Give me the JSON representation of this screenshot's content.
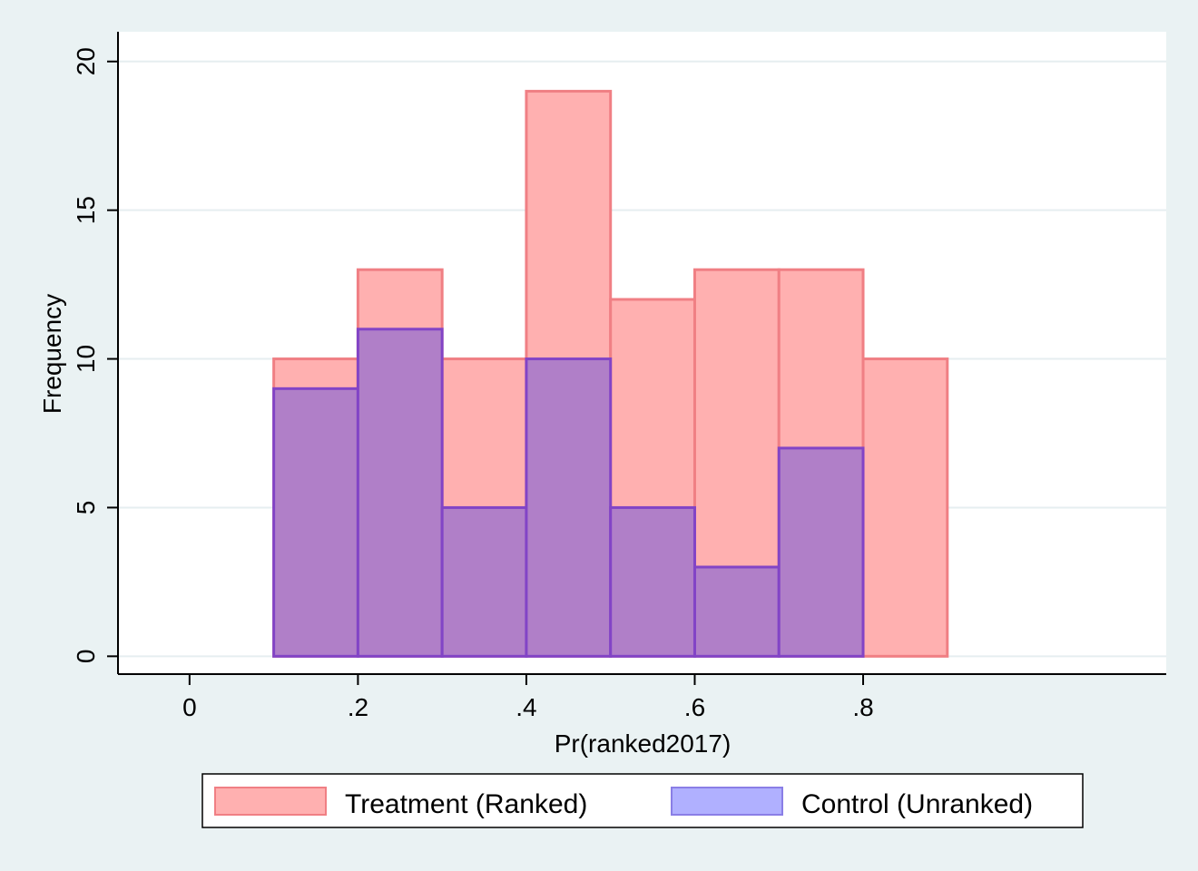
{
  "chart_data": {
    "type": "bar",
    "title": "",
    "xlabel": "Pr(ranked2017)",
    "ylabel": "Frequency",
    "xlim": [
      -0.085,
      1.16
    ],
    "ylim": [
      -0.6,
      21
    ],
    "x_ticks": [
      0,
      0.2,
      0.4,
      0.6,
      0.8
    ],
    "x_tick_labels": [
      "0",
      ".2",
      ".4",
      ".6",
      ".8"
    ],
    "y_ticks": [
      0,
      5,
      10,
      15,
      20
    ],
    "y_tick_labels": [
      "0",
      "5",
      "10",
      "15",
      "20"
    ],
    "grid": true,
    "legend_position": "bottom",
    "bin_width": 0.1,
    "series": [
      {
        "name": "Treatment (Ranked)",
        "fill": "#ffb0b0",
        "stroke": "#f07f84",
        "bins": [
          {
            "start": 0.1,
            "count": 10
          },
          {
            "start": 0.2,
            "count": 13
          },
          {
            "start": 0.3,
            "count": 10
          },
          {
            "start": 0.4,
            "count": 19
          },
          {
            "start": 0.5,
            "count": 12
          },
          {
            "start": 0.6,
            "count": 13
          },
          {
            "start": 0.7,
            "count": 13
          },
          {
            "start": 0.8,
            "count": 10
          }
        ]
      },
      {
        "name": "Control (Unranked)",
        "fill": "#b07fc8",
        "stroke": "#8244c6",
        "legend_fill": "#b0b0ff",
        "legend_stroke": "#8a7ee6",
        "bins": [
          {
            "start": 0.1,
            "count": 9
          },
          {
            "start": 0.2,
            "count": 11
          },
          {
            "start": 0.3,
            "count": 5
          },
          {
            "start": 0.4,
            "count": 10
          },
          {
            "start": 0.5,
            "count": 5
          },
          {
            "start": 0.6,
            "count": 3
          },
          {
            "start": 0.7,
            "count": 7
          }
        ]
      }
    ]
  }
}
